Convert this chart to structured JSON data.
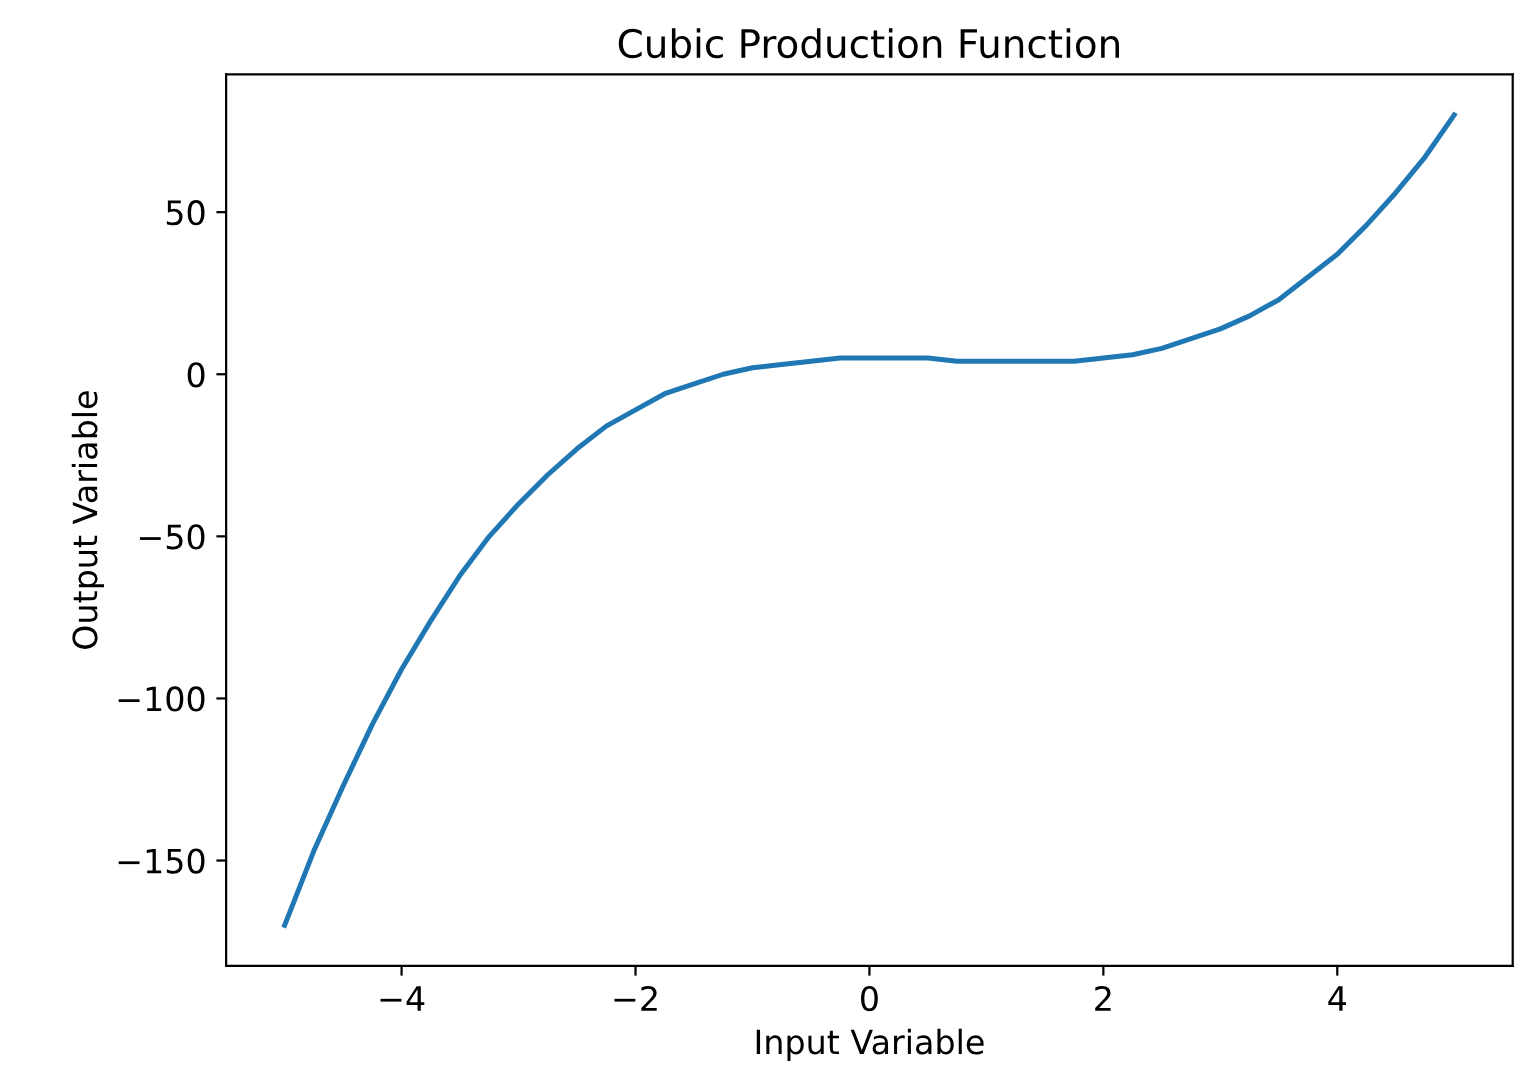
{
  "chart_data": {
    "type": "line",
    "title": "Cubic Production Function",
    "xlabel": "Input Variable",
    "ylabel": "Output Variable",
    "x": [
      -5,
      -4.75,
      -4.5,
      -4.25,
      -4,
      -3.75,
      -3.5,
      -3.25,
      -3,
      -2.75,
      -2.5,
      -2.25,
      -2,
      -1.75,
      -1.5,
      -1.25,
      -1,
      -0.75,
      -0.5,
      -0.25,
      0,
      0.25,
      0.5,
      0.75,
      1,
      1.25,
      1.5,
      1.75,
      2,
      2.25,
      2.5,
      2.75,
      3,
      3.25,
      3.5,
      3.75,
      4,
      4.25,
      4.5,
      4.75,
      5
    ],
    "series": [
      {
        "color": "#1f77b4",
        "values": [
          -170,
          -147,
          -127,
          -108,
          -91,
          -76,
          -62,
          -50,
          -40,
          -31,
          -23,
          -16,
          -11,
          -6,
          -3,
          0,
          2,
          3,
          4,
          5,
          5,
          5,
          5,
          4,
          4,
          4,
          4,
          4,
          5,
          6,
          8,
          11,
          14,
          18,
          23,
          30,
          37,
          46,
          56,
          67,
          80
        ]
      }
    ],
    "xlim": [
      -5.5,
      5.5
    ],
    "ylim": [
      -182.5,
      92.5
    ],
    "xticks": [
      {
        "value": -4,
        "label": "−4"
      },
      {
        "value": -2,
        "label": "−2"
      },
      0,
      2,
      4
    ],
    "yticks": [
      {
        "value": -150,
        "label": "−150"
      },
      {
        "value": -100,
        "label": "−100"
      },
      {
        "value": -50,
        "label": "−50"
      },
      0,
      50
    ],
    "grid": false,
    "legend": false,
    "marker": "none",
    "line_style": "solid"
  }
}
